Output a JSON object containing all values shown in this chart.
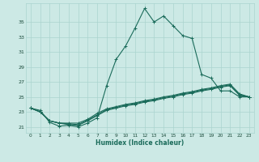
{
  "xlabel": "Humidex (Indice chaleur)",
  "bg_color": "#cce9e5",
  "grid_color": "#aad4cf",
  "line_color": "#1a6b5a",
  "x_ticks": [
    0,
    1,
    2,
    3,
    4,
    5,
    6,
    7,
    8,
    9,
    10,
    11,
    12,
    13,
    14,
    15,
    16,
    17,
    18,
    19,
    20,
    21,
    22,
    23
  ],
  "y_ticks": [
    21,
    23,
    25,
    27,
    29,
    31,
    33,
    35
  ],
  "ylim": [
    20.2,
    37.5
  ],
  "xlim": [
    -0.5,
    23.5
  ],
  "series": [
    [
      23.5,
      23.2,
      21.6,
      21.1,
      21.2,
      21.0,
      21.5,
      22.2,
      26.5,
      30.0,
      31.8,
      34.2,
      36.8,
      35.0,
      35.8,
      34.5,
      33.2,
      32.8,
      28.0,
      27.5,
      25.8,
      25.8,
      25.0,
      25.0
    ],
    [
      23.5,
      23.0,
      21.8,
      21.5,
      21.3,
      21.2,
      21.8,
      22.5,
      23.2,
      23.5,
      23.8,
      24.0,
      24.3,
      24.5,
      24.8,
      25.0,
      25.3,
      25.5,
      25.8,
      26.0,
      26.3,
      26.5,
      25.2,
      25.0
    ],
    [
      23.5,
      23.0,
      21.8,
      21.5,
      21.4,
      21.3,
      21.9,
      22.6,
      23.3,
      23.6,
      23.9,
      24.1,
      24.4,
      24.6,
      24.9,
      25.1,
      25.4,
      25.6,
      25.9,
      26.1,
      26.4,
      26.6,
      25.3,
      25.0
    ],
    [
      23.5,
      23.0,
      21.8,
      21.5,
      21.5,
      21.5,
      22.0,
      22.8,
      23.4,
      23.7,
      24.0,
      24.2,
      24.5,
      24.7,
      25.0,
      25.2,
      25.5,
      25.7,
      26.0,
      26.2,
      26.5,
      26.7,
      25.4,
      25.0
    ]
  ]
}
